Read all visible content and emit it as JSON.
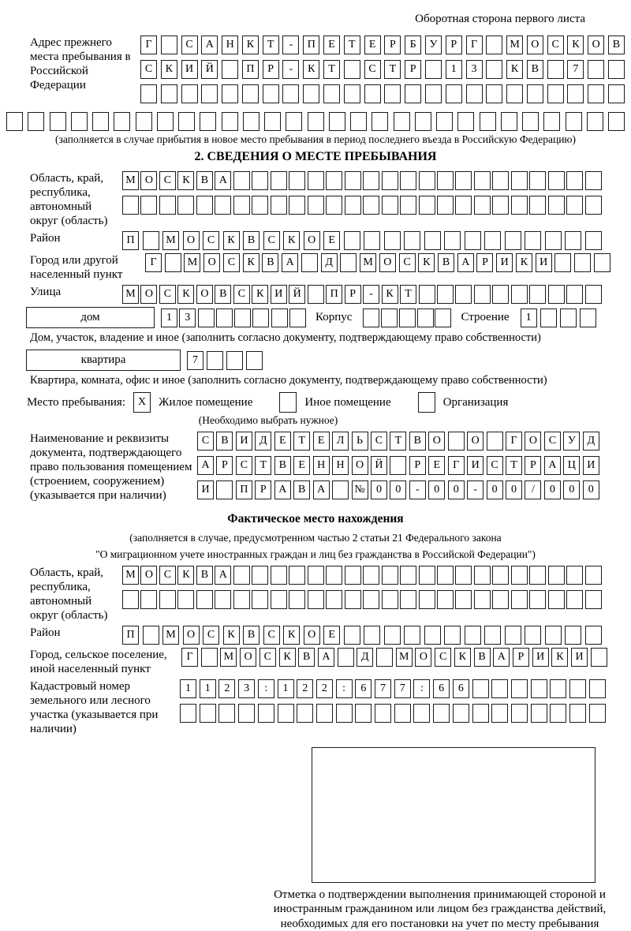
{
  "colors": {
    "ink": "#000000",
    "box_border": "#1b1b1b"
  },
  "page": {
    "side_note": "Оборотная сторона первого листа"
  },
  "prev_address": {
    "label": "Адрес прежнего места пребывания в Российской Федерации",
    "rows": [
      [
        "Г",
        "",
        "С",
        "А",
        "Н",
        "К",
        "Т",
        "-",
        "П",
        "Е",
        "Т",
        "Е",
        "Р",
        "Б",
        "У",
        "Р",
        "Г",
        "",
        "М",
        "О",
        "С",
        "К",
        "О",
        "В"
      ],
      [
        "С",
        "К",
        "И",
        "Й",
        "",
        "П",
        "Р",
        "-",
        "К",
        "Т",
        "",
        "С",
        "Т",
        "Р",
        "",
        "1",
        "3",
        "",
        "К",
        "В",
        "",
        "7",
        "",
        ""
      ],
      [
        "",
        "",
        "",
        "",
        "",
        "",
        "",
        "",
        "",
        "",
        "",
        "",
        "",
        "",
        "",
        "",
        "",
        "",
        "",
        "",
        "",
        "",
        "",
        ""
      ]
    ],
    "full_row": [
      "",
      "",
      "",
      "",
      "",
      "",
      "",
      "",
      "",
      "",
      "",
      "",
      "",
      "",
      "",
      "",
      "",
      "",
      "",
      "",
      "",
      "",
      "",
      "",
      "",
      "",
      "",
      "",
      ""
    ],
    "caption": "(заполняется в случае прибытия в новое место пребывания в период последнего въезда в Российскую Федерацию)"
  },
  "section2": {
    "title": "2. СВЕДЕНИЯ О МЕСТЕ ПРЕБЫВАНИЯ",
    "region": {
      "label": "Область, край, республика, автономный округ (область)",
      "rows": [
        [
          "М",
          "О",
          "С",
          "К",
          "В",
          "А",
          "",
          "",
          "",
          "",
          "",
          "",
          "",
          "",
          "",
          "",
          "",
          "",
          "",
          "",
          "",
          "",
          "",
          "",
          "",
          ""
        ],
        [
          "",
          "",
          "",
          "",
          "",
          "",
          "",
          "",
          "",
          "",
          "",
          "",
          "",
          "",
          "",
          "",
          "",
          "",
          "",
          "",
          "",
          "",
          "",
          "",
          "",
          ""
        ]
      ]
    },
    "district": {
      "label": "Район",
      "cells": [
        "П",
        "",
        "М",
        "О",
        "С",
        "К",
        "В",
        "С",
        "К",
        "О",
        "Е",
        "",
        "",
        "",
        "",
        "",
        "",
        "",
        "",
        "",
        "",
        "",
        "",
        ""
      ]
    },
    "city": {
      "label": "Город или другой населенный пункт",
      "cells": [
        "Г",
        "",
        "М",
        "О",
        "С",
        "К",
        "В",
        "А",
        "",
        "Д",
        "",
        "М",
        "О",
        "С",
        "К",
        "В",
        "А",
        "Р",
        "И",
        "К",
        "И",
        "",
        "",
        ""
      ]
    },
    "street": {
      "label": "Улица",
      "cells": [
        "М",
        "О",
        "С",
        "К",
        "О",
        "В",
        "С",
        "К",
        "И",
        "Й",
        "",
        "П",
        "Р",
        "-",
        "К",
        "Т",
        "",
        "",
        "",
        "",
        "",
        "",
        "",
        "",
        "",
        ""
      ]
    },
    "house": {
      "box_label": "дом",
      "house_cells": [
        "1",
        "3",
        "",
        "",
        "",
        "",
        "",
        ""
      ],
      "korpus_label": "Корпус",
      "korpus_cells": [
        "",
        "",
        "",
        "",
        ""
      ],
      "stroenie_label": "Строение",
      "stroenie_cells": [
        "1",
        "",
        "",
        ""
      ]
    },
    "house_caption": "Дом, участок, владение и иное (заполнить согласно документу, подтверждающему право собственности)",
    "apartment": {
      "box_label": "квартира",
      "cells": [
        "7",
        "",
        "",
        ""
      ]
    },
    "apartment_caption": "Квартира, комната, офис и иное (заполнить согласно документу, подтверждающему право собственности)",
    "stay": {
      "label": "Место пребывания:",
      "options": [
        {
          "mark": "X",
          "label": "Жилое помещение"
        },
        {
          "mark": "",
          "label": "Иное помещение"
        },
        {
          "mark": "",
          "label": "Организация"
        }
      ],
      "hint": "(Необходимо выбрать нужное)"
    },
    "document": {
      "label": "Наименование и реквизиты документа, подтверждающего право пользования помещением (строением, сооружением) (указывается при наличии)",
      "rows": [
        [
          "С",
          "В",
          "И",
          "Д",
          "Е",
          "Т",
          "Е",
          "Л",
          "Ь",
          "С",
          "Т",
          "В",
          "О",
          "",
          "О",
          "",
          "Г",
          "О",
          "С",
          "У",
          "Д"
        ],
        [
          "А",
          "Р",
          "С",
          "Т",
          "В",
          "Е",
          "Н",
          "Н",
          "О",
          "Й",
          "",
          "Р",
          "Е",
          "Г",
          "И",
          "С",
          "Т",
          "Р",
          "А",
          "Ц",
          "И"
        ],
        [
          "И",
          "",
          "П",
          "Р",
          "А",
          "В",
          "А",
          "",
          "№",
          "0",
          "0",
          "-",
          "0",
          "0",
          "-",
          "0",
          "0",
          "/",
          "0",
          "0",
          "0"
        ]
      ]
    }
  },
  "actual": {
    "title": "Фактическое место нахождения",
    "caption1": "(заполняется в случае, предусмотренном частью 2 статьи 21 Федерального закона",
    "caption2": "\"О миграционном учете иностранных граждан и лиц без гражданства в Российской Федерации\")",
    "region": {
      "label": "Область, край, республика, автономный округ (область)",
      "rows": [
        [
          "М",
          "О",
          "С",
          "К",
          "В",
          "А",
          "",
          "",
          "",
          "",
          "",
          "",
          "",
          "",
          "",
          "",
          "",
          "",
          "",
          "",
          "",
          "",
          "",
          "",
          "",
          ""
        ],
        [
          "",
          "",
          "",
          "",
          "",
          "",
          "",
          "",
          "",
          "",
          "",
          "",
          "",
          "",
          "",
          "",
          "",
          "",
          "",
          "",
          "",
          "",
          "",
          "",
          "",
          ""
        ]
      ]
    },
    "district": {
      "label": "Район",
      "cells": [
        "П",
        "",
        "М",
        "О",
        "С",
        "К",
        "В",
        "С",
        "К",
        "О",
        "Е",
        "",
        "",
        "",
        "",
        "",
        "",
        "",
        "",
        "",
        "",
        "",
        "",
        ""
      ]
    },
    "city": {
      "label": "Город, сельское поселение, иной населенный пункт",
      "cells": [
        "Г",
        "",
        "М",
        "О",
        "С",
        "К",
        "В",
        "А",
        "",
        "Д",
        "",
        "М",
        "О",
        "С",
        "К",
        "В",
        "А",
        "Р",
        "И",
        "К",
        "И",
        ""
      ]
    },
    "cadastral": {
      "label": "Кадастровый номер земельного или лесного участка (указывается при наличии)",
      "rows": [
        [
          "1",
          "1",
          "2",
          "3",
          ":",
          "1",
          "2",
          "2",
          ":",
          "6",
          "7",
          "7",
          ":",
          "6",
          "6",
          "",
          "",
          "",
          "",
          "",
          "",
          ""
        ],
        [
          "",
          "",
          "",
          "",
          "",
          "",
          "",
          "",
          "",
          "",
          "",
          "",
          "",
          "",
          "",
          "",
          "",
          "",
          "",
          "",
          "",
          ""
        ]
      ]
    },
    "stamp_caption": "Отметка о подтверждении выполнения принимающей стороной и иностранным гражданином или лицом без гражданства действий, необходимых для его постановки на учет по месту пребывания"
  }
}
